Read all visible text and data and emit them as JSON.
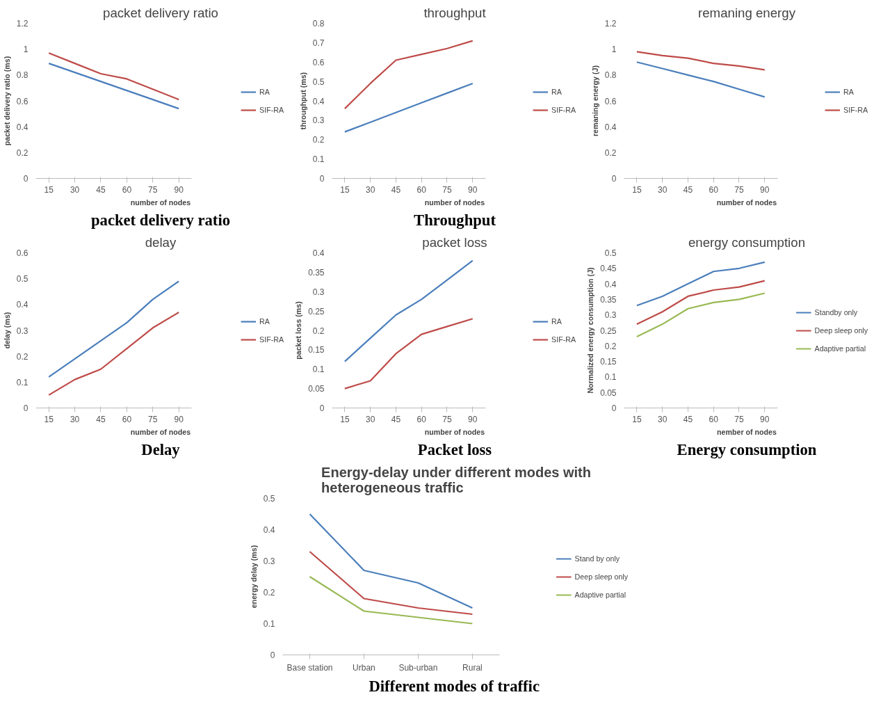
{
  "chart_data": [
    {
      "type": "line",
      "title": "packet delivery ratio",
      "xlabel": "number of nodes",
      "ylabel": "packet delivery ratio (ms)",
      "categories": [
        "15",
        "30",
        "45",
        "60",
        "75",
        "90"
      ],
      "ylim": [
        0,
        1.2
      ],
      "yticks": [
        0,
        0.2,
        0.4,
        0.6,
        0.8,
        1,
        1.2
      ],
      "grid": false,
      "legend": "right",
      "annotations": [
        "packet delivery ratio"
      ],
      "series": [
        {
          "name": "RA",
          "color": "#4a7ebb",
          "values": [
            0.89,
            0.82,
            0.75,
            0.68,
            0.61,
            0.54
          ]
        },
        {
          "name": "SIF-RA",
          "color": "#be4b48",
          "values": [
            0.97,
            0.89,
            0.81,
            0.77,
            0.69,
            0.61
          ]
        }
      ]
    },
    {
      "type": "line",
      "title": "throughput",
      "xlabel": "number of nodes",
      "ylabel": "throughput (ms)",
      "categories": [
        "15",
        "30",
        "45",
        "60",
        "75",
        "90"
      ],
      "ylim": [
        0,
        0.8
      ],
      "yticks": [
        0,
        0.1,
        0.2,
        0.3,
        0.4,
        0.5,
        0.6,
        0.7,
        0.8
      ],
      "grid": false,
      "legend": "right",
      "annotations": [
        "Throughput"
      ],
      "series": [
        {
          "name": "RA",
          "color": "#4a7ebb",
          "values": [
            0.24,
            0.29,
            0.34,
            0.39,
            0.44,
            0.49
          ]
        },
        {
          "name": "SIF-RA",
          "color": "#be4b48",
          "values": [
            0.36,
            0.49,
            0.61,
            0.64,
            0.67,
            0.71
          ]
        }
      ]
    },
    {
      "type": "line",
      "title": "remaning energy",
      "xlabel": "number of nodes",
      "ylabel": "remaning energy (J)",
      "categories": [
        "15",
        "30",
        "45",
        "60",
        "75",
        "90"
      ],
      "ylim": [
        0,
        1.2
      ],
      "yticks": [
        0,
        0.2,
        0.4,
        0.6,
        0.8,
        1,
        1.2
      ],
      "grid": false,
      "legend": "right",
      "series": [
        {
          "name": "RA",
          "color": "#4a7ebb",
          "values": [
            0.9,
            0.85,
            0.8,
            0.75,
            0.69,
            0.63
          ]
        },
        {
          "name": "SIF-RA",
          "color": "#be4b48",
          "values": [
            0.98,
            0.95,
            0.93,
            0.89,
            0.87,
            0.84
          ]
        }
      ]
    },
    {
      "type": "line",
      "title": "delay",
      "xlabel": "number of nodes",
      "ylabel": "delay (ms)",
      "categories": [
        "15",
        "30",
        "45",
        "60",
        "75",
        "90"
      ],
      "ylim": [
        0,
        0.6
      ],
      "yticks": [
        0,
        0.1,
        0.2,
        0.3,
        0.4,
        0.5,
        0.6
      ],
      "grid": false,
      "legend": "right",
      "annotations": [
        "Delay"
      ],
      "series": [
        {
          "name": "RA",
          "color": "#4a7ebb",
          "values": [
            0.12,
            0.19,
            0.26,
            0.33,
            0.42,
            0.49
          ]
        },
        {
          "name": "SIF-RA",
          "color": "#be4b48",
          "values": [
            0.05,
            0.11,
            0.15,
            0.23,
            0.31,
            0.37
          ]
        }
      ]
    },
    {
      "type": "line",
      "title": "packet loss",
      "xlabel": "number of nodes",
      "ylabel": "packet loss (ms)",
      "categories": [
        "15",
        "30",
        "45",
        "60",
        "75",
        "90"
      ],
      "ylim": [
        0,
        0.4
      ],
      "yticks": [
        0,
        0.05,
        0.1,
        0.15,
        0.2,
        0.25,
        0.3,
        0.35,
        0.4
      ],
      "grid": false,
      "legend": "right",
      "annotations": [
        "Packet loss"
      ],
      "series": [
        {
          "name": "RA",
          "color": "#4a7ebb",
          "values": [
            0.12,
            0.18,
            0.24,
            0.28,
            0.33,
            0.38
          ]
        },
        {
          "name": "SIF-RA",
          "color": "#be4b48",
          "values": [
            0.05,
            0.07,
            0.14,
            0.19,
            0.21,
            0.23
          ]
        }
      ]
    },
    {
      "type": "line",
      "title": "energy consumption",
      "xlabel": "nember of nodes",
      "ylabel": "Normalized energy consumption (J)",
      "categories": [
        "15",
        "30",
        "45",
        "60",
        "75",
        "90"
      ],
      "ylim": [
        0,
        0.5
      ],
      "yticks": [
        0,
        0.05,
        0.1,
        0.15,
        0.2,
        0.25,
        0.3,
        0.35,
        0.4,
        0.45,
        0.5
      ],
      "grid": false,
      "legend": "right",
      "annotations": [
        "Energy consumption"
      ],
      "series": [
        {
          "name": "Standby only",
          "color": "#4a7ebb",
          "values": [
            0.33,
            0.36,
            0.4,
            0.44,
            0.45,
            0.47
          ]
        },
        {
          "name": "Deep sleep only",
          "color": "#be4b48",
          "values": [
            0.27,
            0.31,
            0.36,
            0.38,
            0.39,
            0.41
          ]
        },
        {
          "name": "Adaptive partial",
          "color": "#98b954",
          "values": [
            0.23,
            0.27,
            0.32,
            0.34,
            0.35,
            0.37
          ]
        }
      ]
    },
    {
      "type": "line",
      "title": "Energy-delay under different modes with heterogeneous traffic",
      "ylabel": "energy delay (ms)",
      "categories": [
        "Base station",
        "Urban",
        "Sub-urban",
        "Rural"
      ],
      "ylim": [
        0,
        0.5
      ],
      "yticks": [
        0,
        0.1,
        0.2,
        0.3,
        0.4,
        0.5
      ],
      "grid": false,
      "legend": "right",
      "annotations": [
        "Different  modes of traffic"
      ],
      "series": [
        {
          "name": "Stand by only",
          "color": "#4a7ebb",
          "values": [
            0.45,
            0.27,
            0.23,
            0.15
          ]
        },
        {
          "name": "Deep sleep only",
          "color": "#be4b48",
          "values": [
            0.33,
            0.18,
            0.15,
            0.13
          ]
        },
        {
          "name": "Adaptive partial",
          "color": "#98b954",
          "values": [
            0.25,
            0.14,
            0.12,
            0.1
          ]
        }
      ]
    }
  ]
}
